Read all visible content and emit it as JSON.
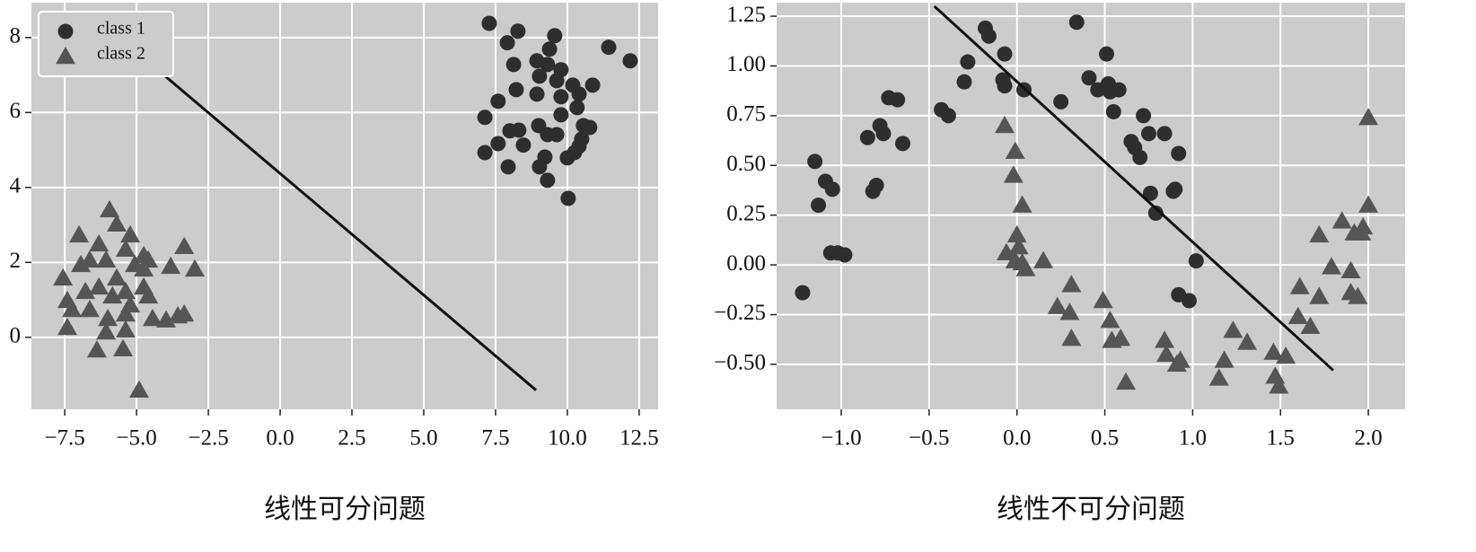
{
  "chart_data": [
    {
      "type": "scatter",
      "xlabel": "线性可分问题",
      "background": "#cccccc",
      "grid": true,
      "legend": "upper left",
      "xlim": [
        -8.66,
        13.16
      ],
      "ylim": [
        -1.92,
        8.93
      ],
      "xticks": [
        {
          "value": -7.5,
          "label": "−7.5"
        },
        {
          "value": -5.0,
          "label": "−5.0"
        },
        {
          "value": -2.5,
          "label": "−2.5"
        },
        {
          "value": 0,
          "label": "0.0"
        },
        2.5,
        {
          "value": 5,
          "label": "5.0"
        },
        7.5,
        {
          "value": 10,
          "label": "10.0"
        },
        12.5
      ],
      "yticks": [
        0,
        2,
        4,
        6,
        8
      ],
      "series": [
        {
          "name": "class 1",
          "color": "#2e2e2e",
          "marker": "circle",
          "x": [
            7.28,
            8.28,
            7.91,
            9.38,
            9.56,
            8.13,
            8.94,
            9.31,
            9.78,
            9.03,
            9.63,
            10.19,
            10.88,
            10.41,
            8.22,
            8.94,
            9.78,
            10.34,
            7.59,
            7.13,
            9.0,
            9.78,
            9.31,
            8.31,
            8.0,
            9.63,
            10.56,
            10.78,
            7.59,
            8.47,
            10.41,
            7.13,
            10.5,
            10.25,
            9.22,
            10.0,
            7.94,
            9.03,
            9.31,
            10.03,
            11.44,
            12.19
          ],
          "values": [
            8.38,
            8.17,
            7.86,
            7.69,
            8.05,
            7.28,
            7.38,
            7.28,
            7.14,
            6.97,
            6.85,
            6.73,
            6.73,
            6.49,
            6.61,
            6.49,
            6.42,
            6.13,
            6.3,
            5.87,
            5.65,
            5.94,
            5.41,
            5.53,
            5.51,
            5.41,
            5.65,
            5.6,
            5.17,
            5.13,
            5.1,
            4.93,
            5.29,
            4.93,
            4.81,
            4.79,
            4.55,
            4.55,
            4.19,
            3.71,
            7.74,
            7.38
          ]
        },
        {
          "name": "class 2",
          "color": "#555555",
          "marker": "triangle",
          "x": [
            -5.94,
            -5.69,
            -7.0,
            -6.31,
            -5.22,
            -7.56,
            -6.63,
            -6.06,
            -5.38,
            -4.75,
            -6.94,
            -5.06,
            -4.59,
            -3.34,
            -2.97,
            -3.81,
            -7.41,
            -6.78,
            -6.31,
            -5.84,
            -5.38,
            -4.75,
            -7.25,
            -6.63,
            -6.0,
            -5.38,
            -4.59,
            -4.44,
            -3.97,
            -3.34,
            -7.41,
            -6.06,
            -5.38,
            -6.38,
            -5.47,
            -4.91,
            -5.69,
            -5.22,
            -3.56,
            -4.75
          ],
          "values": [
            3.4,
            3.02,
            2.73,
            2.49,
            2.73,
            1.58,
            2.06,
            2.06,
            2.35,
            2.18,
            1.94,
            1.94,
            2.06,
            2.42,
            1.82,
            1.89,
            0.98,
            1.22,
            1.34,
            1.1,
            1.22,
            1.34,
            0.74,
            0.74,
            0.5,
            0.62,
            1.1,
            0.5,
            0.46,
            0.62,
            0.26,
            0.14,
            0.19,
            -0.34,
            -0.31,
            -1.41,
            1.58,
            0.86,
            0.57,
            1.82
          ]
        }
      ],
      "line": {
        "color": "#111111",
        "x": [
          -5.22,
          8.91
        ],
        "values": [
          7.76,
          -1.41
        ]
      }
    },
    {
      "type": "scatter",
      "xlabel": "线性不可分问题",
      "background": "#cccccc",
      "grid": true,
      "xlim": [
        -1.368,
        2.209
      ],
      "ylim": [
        -0.726,
        1.318
      ],
      "xticks": [
        {
          "value": -1,
          "label": "−1.0"
        },
        {
          "value": -0.5,
          "label": "−0.5"
        },
        {
          "value": 0,
          "label": "0.0"
        },
        0.5,
        {
          "value": 1,
          "label": "1.0"
        },
        1.5,
        {
          "value": 2,
          "label": "2.0"
        }
      ],
      "yticks": [
        {
          "value": -0.5,
          "label": "−0.50"
        },
        {
          "value": -0.25,
          "label": "−0.25"
        },
        {
          "value": 0,
          "label": "0.00"
        },
        0.25,
        {
          "value": 0.5,
          "label": "0.50"
        },
        0.75,
        {
          "value": 1,
          "label": "1.00"
        },
        1.25
      ],
      "series": [
        {
          "color": "#2e2e2e",
          "marker": "circle",
          "x": [
            -1.22,
            -1.15,
            -1.13,
            -1.09,
            -1.05,
            -1.06,
            -1.02,
            -0.98,
            -0.85,
            -0.82,
            -0.8,
            -0.78,
            -0.76,
            -0.73,
            -0.68,
            -0.65,
            -0.43,
            -0.39,
            -0.3,
            -0.28,
            -0.18,
            -0.16,
            -0.07,
            -0.08,
            -0.07,
            0.04,
            0.25,
            0.34,
            0.41,
            0.46,
            0.51,
            0.52,
            0.53,
            0.55,
            0.58,
            0.65,
            0.67,
            0.7,
            0.72,
            0.75,
            0.76,
            0.79,
            0.84,
            0.89,
            0.9,
            0.92,
            0.92,
            0.98,
            1.02
          ],
          "values": [
            -0.14,
            0.52,
            0.3,
            0.42,
            0.38,
            0.06,
            0.06,
            0.05,
            0.64,
            0.37,
            0.4,
            0.7,
            0.66,
            0.84,
            0.83,
            0.61,
            0.78,
            0.75,
            0.92,
            1.02,
            1.19,
            1.15,
            1.06,
            0.93,
            0.9,
            0.88,
            0.82,
            1.22,
            0.94,
            0.88,
            1.06,
            0.91,
            0.87,
            0.77,
            0.88,
            0.62,
            0.59,
            0.54,
            0.75,
            0.66,
            0.36,
            0.26,
            0.66,
            0.37,
            0.38,
            0.56,
            -0.15,
            -0.18,
            0.02
          ]
        },
        {
          "color": "#555555",
          "marker": "triangle",
          "x": [
            -0.07,
            -0.02,
            -0.01,
            0.03,
            0.0,
            0.01,
            -0.01,
            -0.06,
            0.03,
            0.05,
            0.15,
            0.23,
            0.3,
            0.31,
            0.31,
            0.49,
            0.53,
            0.54,
            0.59,
            0.62,
            0.84,
            0.85,
            0.91,
            0.93,
            1.15,
            1.18,
            1.23,
            1.31,
            1.46,
            1.47,
            1.49,
            1.53,
            1.61,
            1.6,
            1.67,
            1.72,
            1.72,
            1.79,
            1.85,
            1.9,
            1.9,
            1.92,
            1.94,
            1.96,
            1.97,
            2.0,
            2.0
          ],
          "values": [
            0.7,
            0.45,
            0.57,
            0.3,
            0.15,
            0.09,
            0.02,
            0.06,
            0.01,
            -0.02,
            0.02,
            -0.21,
            -0.24,
            -0.37,
            -0.1,
            -0.18,
            -0.28,
            -0.38,
            -0.37,
            -0.59,
            -0.38,
            -0.45,
            -0.5,
            -0.48,
            -0.57,
            -0.48,
            -0.33,
            -0.39,
            -0.44,
            -0.56,
            -0.61,
            -0.46,
            -0.11,
            -0.26,
            -0.31,
            0.15,
            -0.16,
            -0.01,
            0.22,
            -0.14,
            -0.03,
            0.16,
            -0.16,
            0.16,
            0.19,
            0.3,
            0.74
          ]
        }
      ],
      "line": {
        "color": "#111111",
        "x": [
          -0.47,
          1.8
        ],
        "values": [
          1.3,
          -0.53
        ]
      }
    }
  ]
}
